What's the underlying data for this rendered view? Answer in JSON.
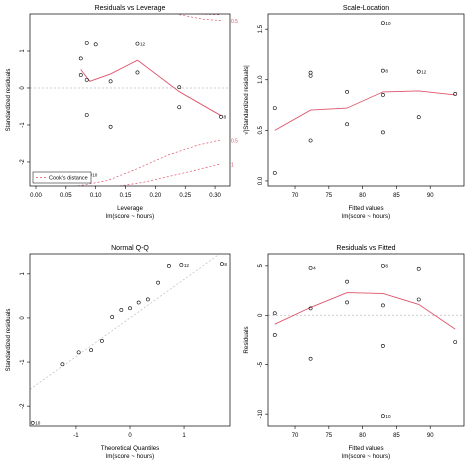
{
  "colors": {
    "points": "#000000",
    "axes": "#000000",
    "smooth": "#df536b",
    "reference": "#bebebe",
    "background": "#ffffff"
  },
  "chart_data": [
    {
      "id": "residuals-vs-leverage",
      "type": "scatter",
      "title": "Residuals vs Leverage",
      "xlabel": "Leverage",
      "sublabel": "lm(score ~ hours)",
      "ylabel": "Standardized residuals",
      "xlim": [
        -0.01,
        0.325
      ],
      "ylim": [
        -2.65,
        2.0
      ],
      "xticks": [
        0.0,
        0.05,
        0.1,
        0.15,
        0.2,
        0.25,
        0.3
      ],
      "xtick_labels": [
        "0.00",
        "0.05",
        "0.10",
        "0.15",
        "0.20",
        "0.25",
        "0.30"
      ],
      "yticks": [
        -2,
        -1,
        0,
        1
      ],
      "ytick_labels": [
        "-2",
        "-1",
        "0",
        "1"
      ],
      "hline": 0,
      "points": [
        {
          "x": 0.075,
          "y": 0.8
        },
        {
          "x": 0.075,
          "y": 0.35
        },
        {
          "x": 0.085,
          "y": 1.22
        },
        {
          "x": 0.085,
          "y": 0.22
        },
        {
          "x": 0.085,
          "y": -0.73
        },
        {
          "x": 0.09,
          "y": -2.35,
          "label": "10"
        },
        {
          "x": 0.1,
          "y": 1.18
        },
        {
          "x": 0.125,
          "y": 0.18
        },
        {
          "x": 0.125,
          "y": -1.05
        },
        {
          "x": 0.17,
          "y": 1.2,
          "label": "12"
        },
        {
          "x": 0.17,
          "y": 0.42
        },
        {
          "x": 0.24,
          "y": 0.02
        },
        {
          "x": 0.24,
          "y": -0.52
        },
        {
          "x": 0.31,
          "y": -0.78,
          "label": "8"
        }
      ],
      "smooth": [
        [
          0.075,
          0.5
        ],
        [
          0.09,
          0.18
        ],
        [
          0.125,
          0.38
        ],
        [
          0.17,
          0.75
        ],
        [
          0.24,
          -0.1
        ],
        [
          0.31,
          -0.75
        ]
      ],
      "cooks_curves": [
        {
          "side": "top",
          "label": "0.5",
          "pts": [
            [
              0.24,
              1.98
            ],
            [
              0.26,
              1.92
            ],
            [
              0.28,
              1.86
            ],
            [
              0.31,
              1.82
            ]
          ]
        },
        {
          "side": "top",
          "label": "",
          "pts": [
            [
              0.27,
              2.0
            ],
            [
              0.31,
              1.98
            ]
          ]
        },
        {
          "side": "bottom",
          "label": "0.5",
          "pts": [
            [
              0.07,
              -2.65
            ],
            [
              0.12,
              -2.5
            ],
            [
              0.17,
              -2.18
            ],
            [
              0.22,
              -1.82
            ],
            [
              0.27,
              -1.55
            ],
            [
              0.31,
              -1.4
            ]
          ]
        },
        {
          "side": "bottom",
          "label": "1",
          "pts": [
            [
              0.14,
              -2.65
            ],
            [
              0.18,
              -2.55
            ],
            [
              0.22,
              -2.4
            ],
            [
              0.26,
              -2.25
            ],
            [
              0.31,
              -2.05
            ]
          ]
        }
      ],
      "legend": {
        "label": "Cook's distance",
        "position": "bottom-left"
      }
    },
    {
      "id": "scale-location",
      "type": "scatter",
      "title": "Scale-Location",
      "xlabel": "Fitted values",
      "sublabel": "lm(score ~ hours)",
      "ylabel": "√|Standardized residuals|",
      "xlim": [
        66,
        95
      ],
      "ylim": [
        -0.05,
        1.65
      ],
      "xticks": [
        70,
        75,
        80,
        85,
        90
      ],
      "xtick_labels": [
        "70",
        "75",
        "80",
        "85",
        "90"
      ],
      "yticks": [
        0.0,
        0.5,
        1.0,
        1.5
      ],
      "ytick_labels": [
        "0.0",
        "0.5",
        "1.0",
        "1.5"
      ],
      "points": [
        {
          "x": 67,
          "y": 0.72
        },
        {
          "x": 67,
          "y": 0.08
        },
        {
          "x": 72.3,
          "y": 1.07
        },
        {
          "x": 72.3,
          "y": 1.04
        },
        {
          "x": 72.3,
          "y": 0.4
        },
        {
          "x": 77.7,
          "y": 0.88
        },
        {
          "x": 77.7,
          "y": 0.56
        },
        {
          "x": 83,
          "y": 1.56,
          "label": "10"
        },
        {
          "x": 83,
          "y": 1.09,
          "label": "8"
        },
        {
          "x": 83,
          "y": 0.85
        },
        {
          "x": 83,
          "y": 0.48
        },
        {
          "x": 88.3,
          "y": 1.08,
          "label": "12"
        },
        {
          "x": 88.3,
          "y": 0.63
        },
        {
          "x": 93.7,
          "y": 0.86
        }
      ],
      "smooth": [
        [
          67,
          0.5
        ],
        [
          72.3,
          0.7
        ],
        [
          77.7,
          0.72
        ],
        [
          83,
          0.88
        ],
        [
          88.3,
          0.89
        ],
        [
          93.7,
          0.85
        ]
      ]
    },
    {
      "id": "normal-qq",
      "type": "scatter",
      "title": "Normal Q-Q",
      "xlabel": "Theoretical Quantiles",
      "sublabel": "lm(score ~ hours)",
      "ylabel": "Standardized residuals",
      "xlim": [
        -1.85,
        1.85
      ],
      "ylim": [
        -2.45,
        1.45
      ],
      "xticks": [
        -1,
        0,
        1
      ],
      "xtick_labels": [
        "-1",
        "0",
        "1"
      ],
      "yticks": [
        -2,
        -1,
        0,
        1
      ],
      "ytick_labels": [
        "-2",
        "-1",
        "0",
        "1"
      ],
      "points": [
        {
          "x": -1.8,
          "y": -2.38,
          "label": "10"
        },
        {
          "x": -1.25,
          "y": -1.05
        },
        {
          "x": -0.95,
          "y": -0.78
        },
        {
          "x": -0.72,
          "y": -0.73
        },
        {
          "x": -0.52,
          "y": -0.52
        },
        {
          "x": -0.33,
          "y": 0.02
        },
        {
          "x": -0.16,
          "y": 0.18
        },
        {
          "x": 0.0,
          "y": 0.22
        },
        {
          "x": 0.16,
          "y": 0.35
        },
        {
          "x": 0.33,
          "y": 0.42
        },
        {
          "x": 0.52,
          "y": 0.8
        },
        {
          "x": 0.72,
          "y": 1.18
        },
        {
          "x": 0.95,
          "y": 1.2,
          "label": "12"
        },
        {
          "x": 1.7,
          "y": 1.22,
          "label": "8"
        }
      ],
      "ref_line": [
        [
          -1.85,
          -1.62
        ],
        [
          1.85,
          1.62
        ]
      ]
    },
    {
      "id": "residuals-vs-fitted",
      "type": "scatter",
      "title": "Residuals vs Fitted",
      "xlabel": "Fitted values",
      "sublabel": "lm(score ~ hours)",
      "ylabel": "Residuals",
      "xlim": [
        66,
        95
      ],
      "ylim": [
        -11.2,
        6.2
      ],
      "xticks": [
        70,
        75,
        80,
        85,
        90
      ],
      "xtick_labels": [
        "70",
        "75",
        "80",
        "85",
        "90"
      ],
      "yticks": [
        -10,
        -5,
        0,
        5
      ],
      "ytick_labels": [
        "-10",
        "-5",
        "0",
        "5"
      ],
      "hline": 0,
      "points": [
        {
          "x": 67,
          "y": 0.2
        },
        {
          "x": 67,
          "y": -2.0
        },
        {
          "x": 72.3,
          "y": 4.8,
          "label": "4"
        },
        {
          "x": 72.3,
          "y": 0.7
        },
        {
          "x": 72.3,
          "y": -4.4
        },
        {
          "x": 77.7,
          "y": 3.4
        },
        {
          "x": 77.7,
          "y": 1.3
        },
        {
          "x": 83,
          "y": 5.0,
          "label": "8"
        },
        {
          "x": 83,
          "y": 1.0
        },
        {
          "x": 83,
          "y": -3.1
        },
        {
          "x": 83,
          "y": -10.2,
          "label": "10"
        },
        {
          "x": 88.3,
          "y": 4.7
        },
        {
          "x": 88.3,
          "y": 1.6
        },
        {
          "x": 93.7,
          "y": -2.7
        }
      ],
      "smooth": [
        [
          67,
          -0.9
        ],
        [
          72.3,
          0.8
        ],
        [
          77.7,
          2.3
        ],
        [
          83,
          2.2
        ],
        [
          88.3,
          1.1
        ],
        [
          93.7,
          -1.4
        ]
      ]
    }
  ]
}
